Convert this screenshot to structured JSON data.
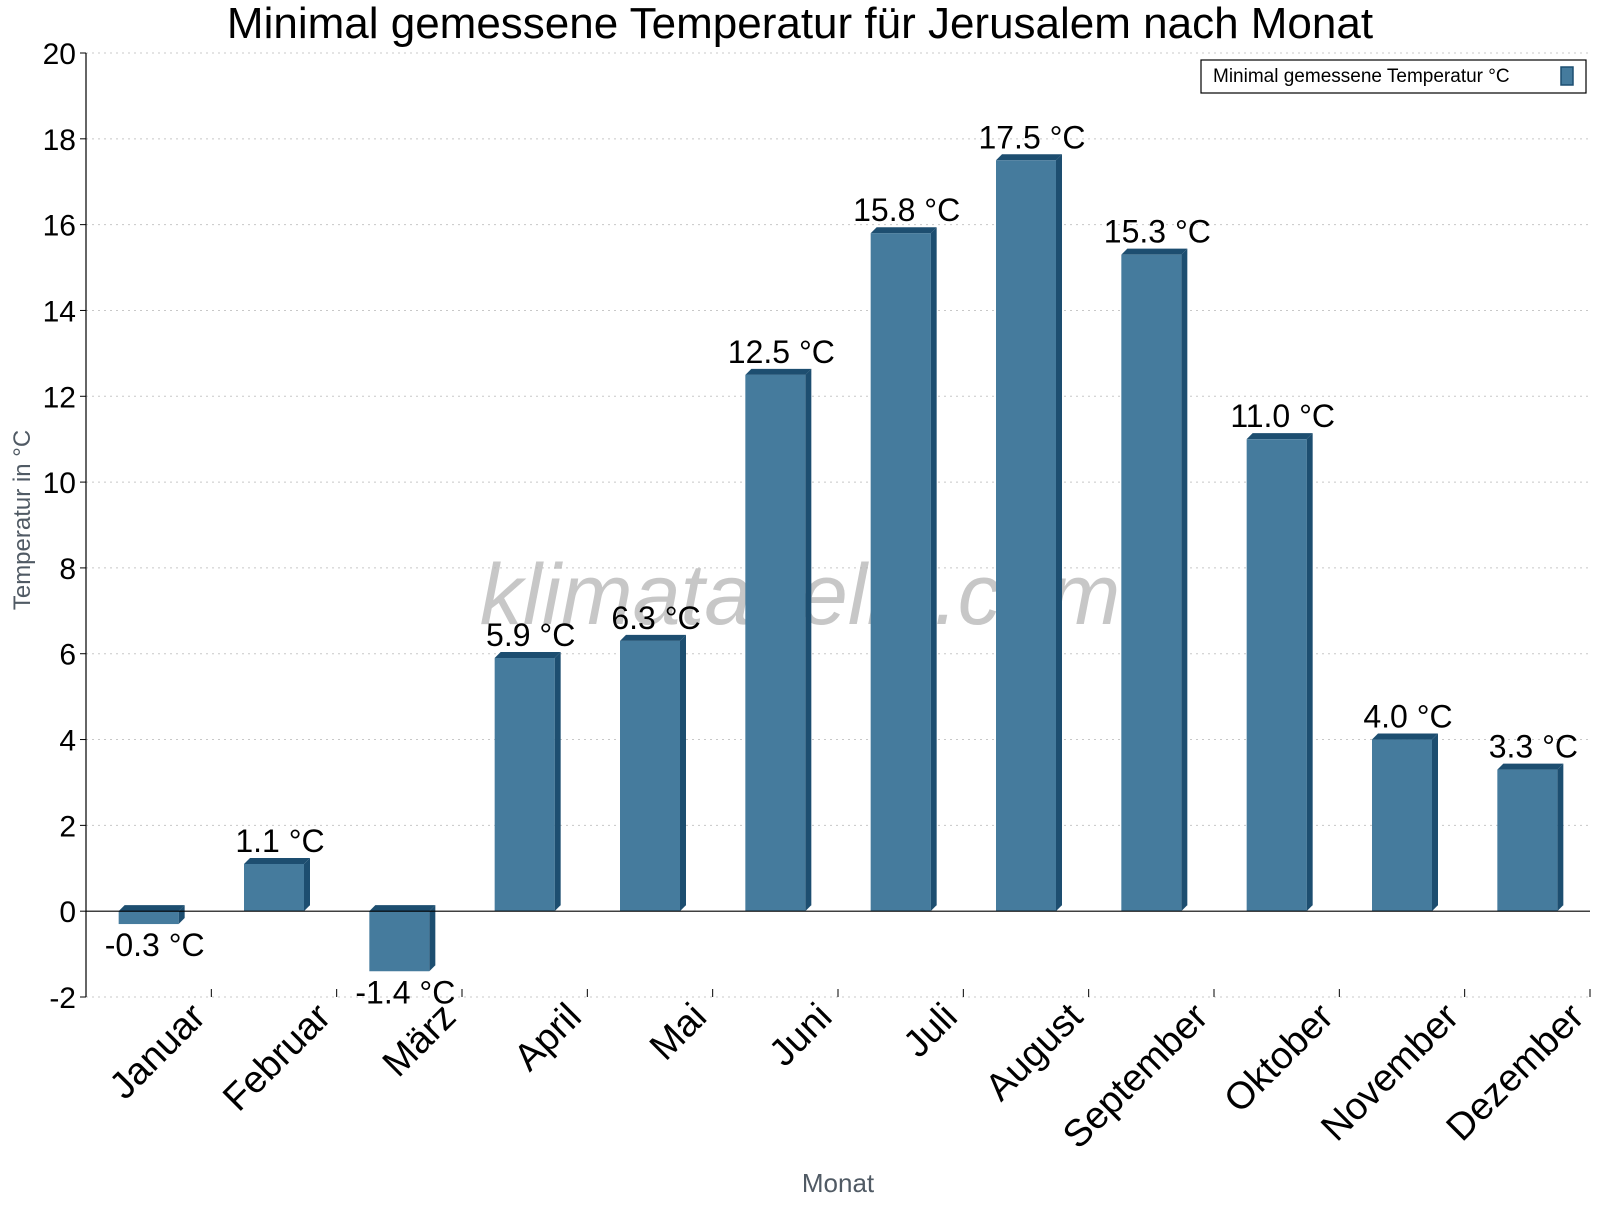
{
  "chart_data": {
    "type": "bar",
    "title": "Minimal gemessene Temperatur für Jerusalem nach Monat",
    "xlabel": "Monat",
    "ylabel": "Temperatur in °C",
    "categories": [
      "Januar",
      "Februar",
      "März",
      "April",
      "Mai",
      "Juni",
      "Juli",
      "August",
      "September",
      "Oktober",
      "November",
      "Dezember"
    ],
    "series": [
      {
        "name": "Minimal gemessene Temperatur °C",
        "values": [
          -0.3,
          1.1,
          -1.4,
          5.9,
          6.3,
          12.5,
          15.8,
          17.5,
          15.3,
          11.0,
          4.0,
          3.3
        ],
        "labels": [
          "-0.3 °C",
          "1.1 °C",
          "-1.4 °C",
          "5.9 °C",
          "6.3 °C",
          "12.5 °C",
          "15.8 °C",
          "17.5 °C",
          "15.3 °C",
          "11.0 °C",
          "4.0 °C",
          "3.3 °C"
        ]
      }
    ],
    "ylim": [
      -2,
      20
    ],
    "yticks": [
      "-2",
      "0",
      "2",
      "4",
      "6",
      "8",
      "10",
      "12",
      "14",
      "16",
      "18",
      "20"
    ],
    "grid": true,
    "legend_position": "top-right",
    "watermark": "klimatabelle.com",
    "colors": {
      "bar": "#457b9d",
      "bar_side": "#1d4e70",
      "bar_top": "#1d4e70"
    }
  }
}
